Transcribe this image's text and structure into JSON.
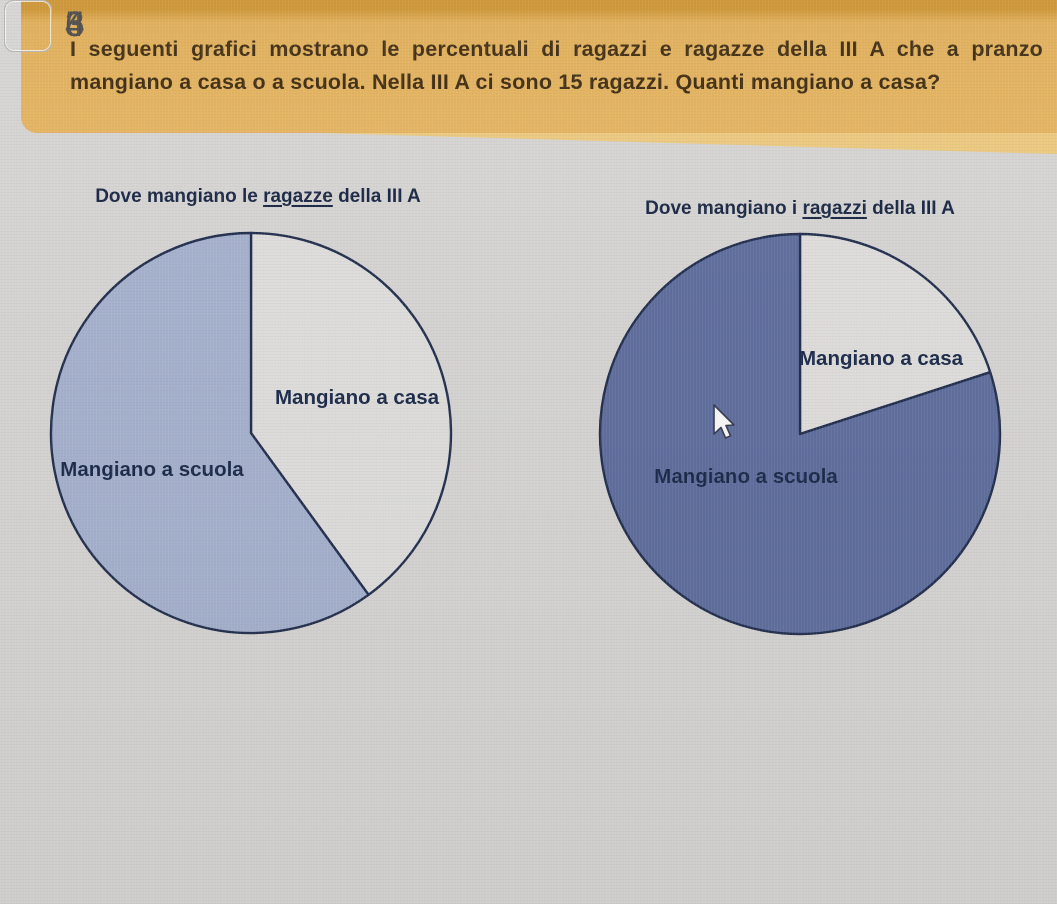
{
  "question": {
    "text": "I seguenti grafici mostrano le percentuali di ragazzi e ragazze della III A che a pranzo mangiano a casa o a scuola. Nella III A ci sono 15 ragazzi. Quanti mangiano a casa?"
  },
  "titles": [
    {
      "prefix": "Dove mangiano le ",
      "underlined": "ragazze",
      "suffix": " della III A"
    },
    {
      "prefix": "Dove mangiano i ",
      "underlined": "ragazzi",
      "suffix": " della III A"
    }
  ],
  "chart_data": [
    {
      "type": "pie",
      "title": "Dove mangiano le ragazze della III A",
      "labels": [
        "Mangiano a casa",
        "Mangiano a scuola"
      ],
      "values": [
        40,
        60
      ],
      "unit": "percent",
      "colors": [
        "#dedddb",
        "#a5b1cd"
      ],
      "stroke_color": "#232f4e",
      "start_angle_deg": 0,
      "direction": "clockwise",
      "legend_position": "inside"
    },
    {
      "type": "pie",
      "title": "Dove mangiano i ragazzi della III A",
      "labels": [
        "Mangiano a casa",
        "Mangiano a scuola"
      ],
      "values": [
        20,
        80
      ],
      "unit": "percent",
      "colors": [
        "#dedddb",
        "#5f6e9d"
      ],
      "stroke_color": "#232f4e",
      "start_angle_deg": 0,
      "direction": "clockwise",
      "legend_position": "inside"
    }
  ],
  "answers": [
    "6",
    "4",
    "5",
    "3"
  ],
  "ui_colors": {
    "background": "#d5d4d2",
    "banner": "#e4b462",
    "banner_top_band": "#cc9330",
    "banner_text": "#3e2b10",
    "chart_text": "#1b2a4a",
    "answer_text": "#4a4947"
  }
}
